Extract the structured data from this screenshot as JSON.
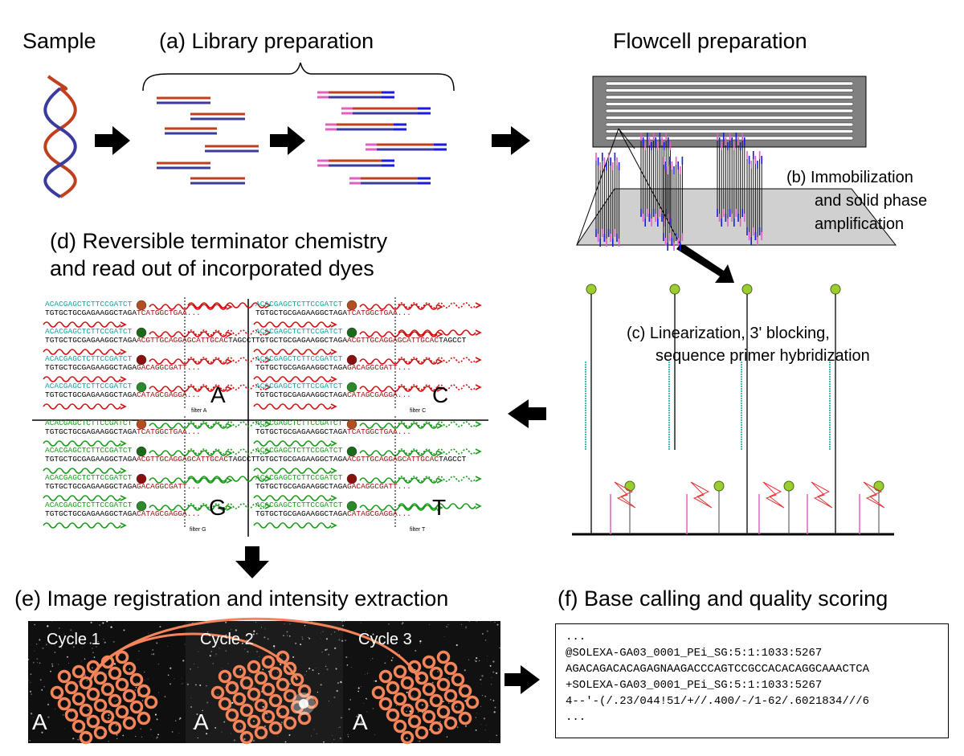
{
  "labels": {
    "sample": "Sample",
    "library": "(a) Library preparation",
    "flowcell": "Flowcell preparation",
    "immob_1": "(b) Immobilization",
    "immob_2": "and solid phase",
    "immob_3": "amplification",
    "revterm_1": "(d) Reversible terminator chemistry",
    "revterm_2": "and read out of incorporated dyes",
    "linear_1": "(c) Linearization, 3' blocking,",
    "linear_2": "sequence primer hybridization",
    "image_reg": "(e) Image registration and intensity extraction",
    "basecall": "(f) Base calling and quality scoring"
  },
  "panels": [
    {
      "letter": "A",
      "filter": "filter A"
    },
    {
      "letter": "C",
      "filter": "filter C"
    },
    {
      "letter": "G",
      "filter": "filter G"
    },
    {
      "letter": "T",
      "filter": "filter T"
    }
  ],
  "sequences": {
    "primer": "ACACGAGCTCTTCCGATCT",
    "template_prefix": "TGTGCTGCGAGAAGGCTAGA",
    "reads": [
      "TCATGGCTGAA...",
      "ACGTTGCAGGAGCATTGCAC",
      "GACAGGCGATT...",
      "CATAGCGAGGA..."
    ],
    "read_suffix": "TAGCCT"
  },
  "cycles": [
    {
      "label": "Cycle 1",
      "channel": "A"
    },
    {
      "label": "Cycle 2",
      "channel": "A"
    },
    {
      "label": "Cycle 3",
      "channel": "A"
    }
  ],
  "fastq_lines": [
    "...",
    "@SOLEXA-GA03_0001_PEi_SG:5:1:1033:5267",
    "AGACAGACACAGAGNAAGACCCAGTCCGCCACACAGGCAAACTCA",
    "+SOLEXA-GA03_0001_PEi_SG:5:1:1033:5267",
    "4--'-(/.23/044!51/+//.400/-/1-62/.6021834///6",
    "..."
  ],
  "colors": {
    "dna_red": "#c0401e",
    "dna_blue": "#3b3b9e",
    "adapter_pink": "#e060c0",
    "adapter_blue": "#1a1ae0",
    "cyan": "#1aa0a0",
    "dark_red": "#a01010",
    "wave_red": "#d01010",
    "wave_green": "#1a9a1a",
    "bead_green": "#9acd32",
    "ring_orange": "#f4845a",
    "flowcell_gray": "#808080"
  }
}
